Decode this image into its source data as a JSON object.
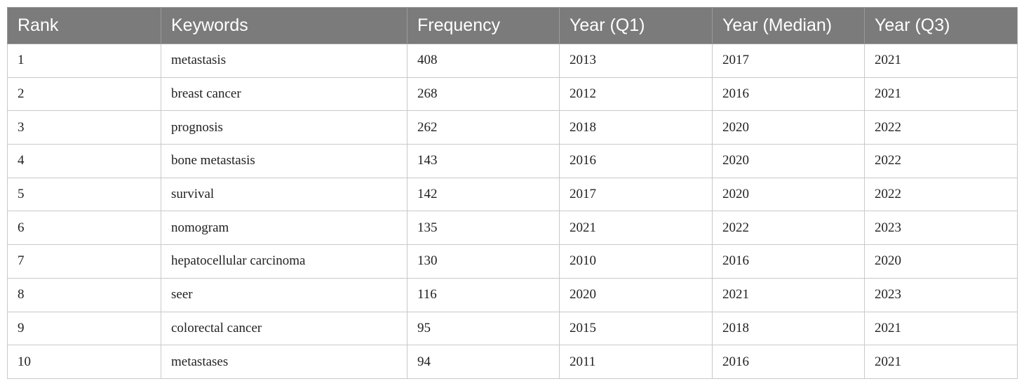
{
  "table": {
    "headers": [
      "Rank",
      "Keywords",
      "Frequency",
      "Year (Q1)",
      "Year (Median)",
      "Year (Q3)"
    ],
    "rows": [
      [
        "1",
        "metastasis",
        "408",
        "2013",
        "2017",
        "2021"
      ],
      [
        "2",
        "breast cancer",
        "268",
        "2012",
        "2016",
        "2021"
      ],
      [
        "3",
        "prognosis",
        "262",
        "2018",
        "2020",
        "2022"
      ],
      [
        "4",
        "bone metastasis",
        "143",
        "2016",
        "2020",
        "2022"
      ],
      [
        "5",
        "survival",
        "142",
        "2017",
        "2020",
        "2022"
      ],
      [
        "6",
        "nomogram",
        "135",
        "2021",
        "2022",
        "2023"
      ],
      [
        "7",
        "hepatocellular carcinoma",
        "130",
        "2010",
        "2016",
        "2020"
      ],
      [
        "8",
        "seer",
        "116",
        "2020",
        "2021",
        "2023"
      ],
      [
        "9",
        "colorectal cancer",
        "95",
        "2015",
        "2018",
        "2021"
      ],
      [
        "10",
        "metastases",
        "94",
        "2011",
        "2016",
        "2021"
      ]
    ]
  },
  "colors": {
    "header_background": "#7b7b7b",
    "header_text": "#ffffff",
    "border": "#c9c9c9",
    "body_text": "#222222"
  }
}
